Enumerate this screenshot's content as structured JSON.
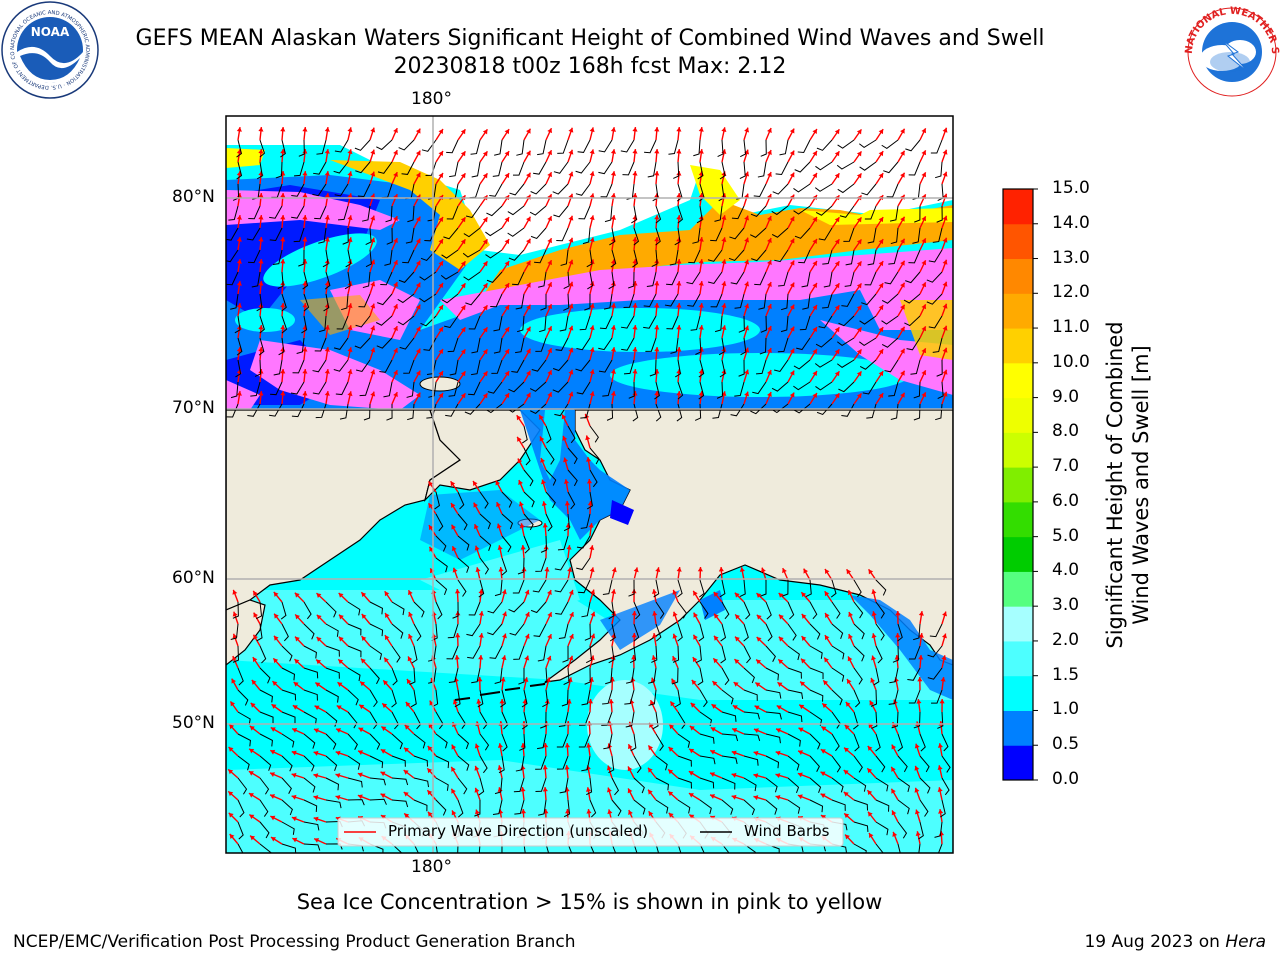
{
  "header": {
    "title_line1": "GEFS MEAN Alaskan Waters Significant Height of Combined Wind Waves and Swell",
    "title_line2": "20230818 t00z 168h fcst   Max: 2.12"
  },
  "logos": {
    "noaa_label": "NOAA",
    "noaa_ring_text": "NATIONAL OCEANIC AND ATMOSPHERIC ADMINISTRATION · U.S. DEPARTMENT OF COMMERCE",
    "nws_ring_text": "NATIONAL WEATHER SERVICE"
  },
  "map": {
    "top_lon_label": "180°",
    "bottom_lon_label": "180°",
    "lat_labels": [
      "80°N",
      "70°N",
      "60°N",
      "50°N"
    ],
    "legend": {
      "wave_direction_label": "Primary Wave Direction (unscaled)",
      "wind_barbs_label": "Wind Barbs"
    },
    "colors": {
      "land": "#efebdc",
      "wave_arrow": "#ff0000",
      "wind_barb": "#000000",
      "grid": "#b0b0b0"
    }
  },
  "colorbar": {
    "title_line1": "Significant Height of Combined",
    "title_line2": "Wind Waves and Swell [m]",
    "ticks": [
      "0.0",
      "0.5",
      "1.0",
      "1.5",
      "2.0",
      "3.0",
      "4.0",
      "5.0",
      "6.0",
      "7.0",
      "8.0",
      "9.0",
      "10.0",
      "11.0",
      "12.0",
      "13.0",
      "14.0",
      "15.0"
    ],
    "colors": [
      "#0000ff",
      "#0080ff",
      "#00ffff",
      "#4dffff",
      "#a6ffff",
      "#55ff80",
      "#00cc00",
      "#33dd00",
      "#80ee00",
      "#ccff00",
      "#eeff00",
      "#ffff00",
      "#ffd000",
      "#ffaa00",
      "#ff8800",
      "#ff5500",
      "#ff2200"
    ]
  },
  "captions": {
    "ice_note": "Sea Ice Concentration > 15% is shown in pink to yellow",
    "branch": "NCEP/EMC/Verification Post Processing Product Generation Branch",
    "date_prefix": "19 Aug 2023 on ",
    "date_host": "Hera"
  }
}
